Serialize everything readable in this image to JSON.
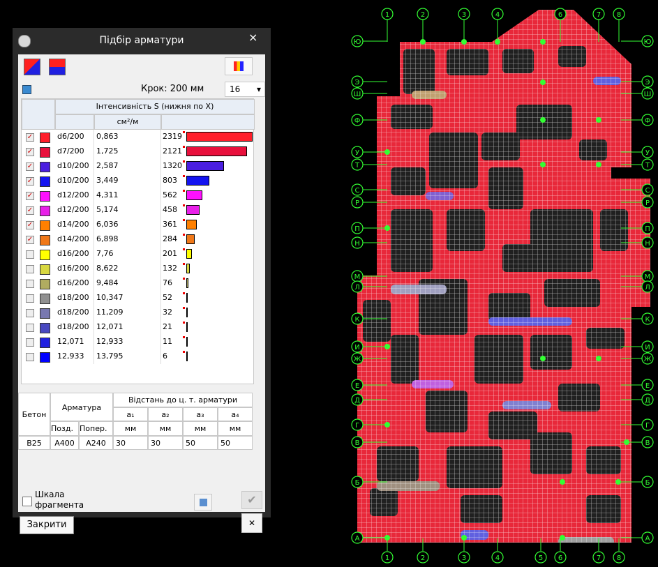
{
  "dialog": {
    "title": "Підбір арматури",
    "close": "×",
    "step": "Крок: 200 мм",
    "step_select": "16",
    "table": {
      "header": "Інтенсивність S (нижня по X)",
      "unit": "см²/м",
      "rows": [
        {
          "checked": true,
          "color": "#ff1e2a",
          "label": "d6/200",
          "value": "0,863",
          "count": 2319
        },
        {
          "checked": true,
          "color": "#e8103c",
          "label": "d7/200",
          "value": "1,725",
          "count": 2121
        },
        {
          "checked": true,
          "color": "#4a1ee0",
          "label": "d10/200",
          "value": "2,587",
          "count": 1320
        },
        {
          "checked": true,
          "color": "#1414f0",
          "label": "d10/200",
          "value": "3,449",
          "count": 803
        },
        {
          "checked": true,
          "color": "#ff10ff",
          "label": "d12/200",
          "value": "4,311",
          "count": 562
        },
        {
          "checked": true,
          "color": "#e820e8",
          "label": "d12/200",
          "value": "5,174",
          "count": 458
        },
        {
          "checked": true,
          "color": "#ff8000",
          "label": "d14/200",
          "value": "6,036",
          "count": 361
        },
        {
          "checked": true,
          "color": "#f07818",
          "label": "d14/200",
          "value": "6,898",
          "count": 284
        },
        {
          "checked": false,
          "color": "#ffff00",
          "label": "d16/200",
          "value": "7,76",
          "count": 201
        },
        {
          "checked": false,
          "color": "#d8d840",
          "label": "d16/200",
          "value": "8,622",
          "count": 132
        },
        {
          "checked": false,
          "color": "#b0ac60",
          "label": "d16/200",
          "value": "9,484",
          "count": 76
        },
        {
          "checked": false,
          "color": "#909090",
          "label": "d18/200",
          "value": "10,347",
          "count": 52
        },
        {
          "checked": false,
          "color": "#7878b0",
          "label": "d18/200",
          "value": "11,209",
          "count": 32
        },
        {
          "checked": false,
          "color": "#4848c0",
          "label": "d18/200",
          "value": "12,071",
          "count": 21
        },
        {
          "checked": false,
          "color": "#2020e0",
          "label": "12,071",
          "value": "12,933",
          "count": 11
        },
        {
          "checked": false,
          "color": "#0000ff",
          "label": "12,933",
          "value": "13,795",
          "count": 6
        }
      ]
    },
    "params": {
      "concrete_header": "Бетон",
      "rebar_header": "Арматура",
      "distance_header": "Відстань до ц. т. арматури",
      "long_header": "Позд.",
      "trans_header": "Попер.",
      "a_headers": [
        "a₁",
        "a₂",
        "a₃",
        "a₄"
      ],
      "units": [
        "мм",
        "мм",
        "мм",
        "мм"
      ],
      "concrete": "B25",
      "long": "A400",
      "trans": "A240",
      "distances": [
        30,
        30,
        50,
        50
      ]
    },
    "scale_checkbox": [
      "Шкала",
      "фрагмента"
    ],
    "close_button": "Закрити"
  },
  "plan": {
    "top_axes": [
      "1",
      "2",
      "3",
      "4",
      "6",
      "7",
      "8"
    ],
    "bottom_axes": [
      "1",
      "2",
      "3",
      "4",
      "5",
      "6",
      "7",
      "8"
    ],
    "left_axes": [
      "Ю",
      "Э",
      "Ш",
      "Ф",
      "У",
      "Т",
      "С",
      "Р",
      "П",
      "Н",
      "М",
      "Л",
      "К",
      "И",
      "Ж",
      "Е",
      "Д",
      "Г",
      "В",
      "Б",
      "А"
    ],
    "right_axes": [
      "Ю",
      "Э",
      "Ш",
      "Ф",
      "У",
      "Т",
      "С",
      "Р",
      "П",
      "Н",
      "М",
      "Л",
      "К",
      "И",
      "Ж",
      "Е",
      "Д",
      "Г",
      "В",
      "Б",
      "А"
    ]
  }
}
